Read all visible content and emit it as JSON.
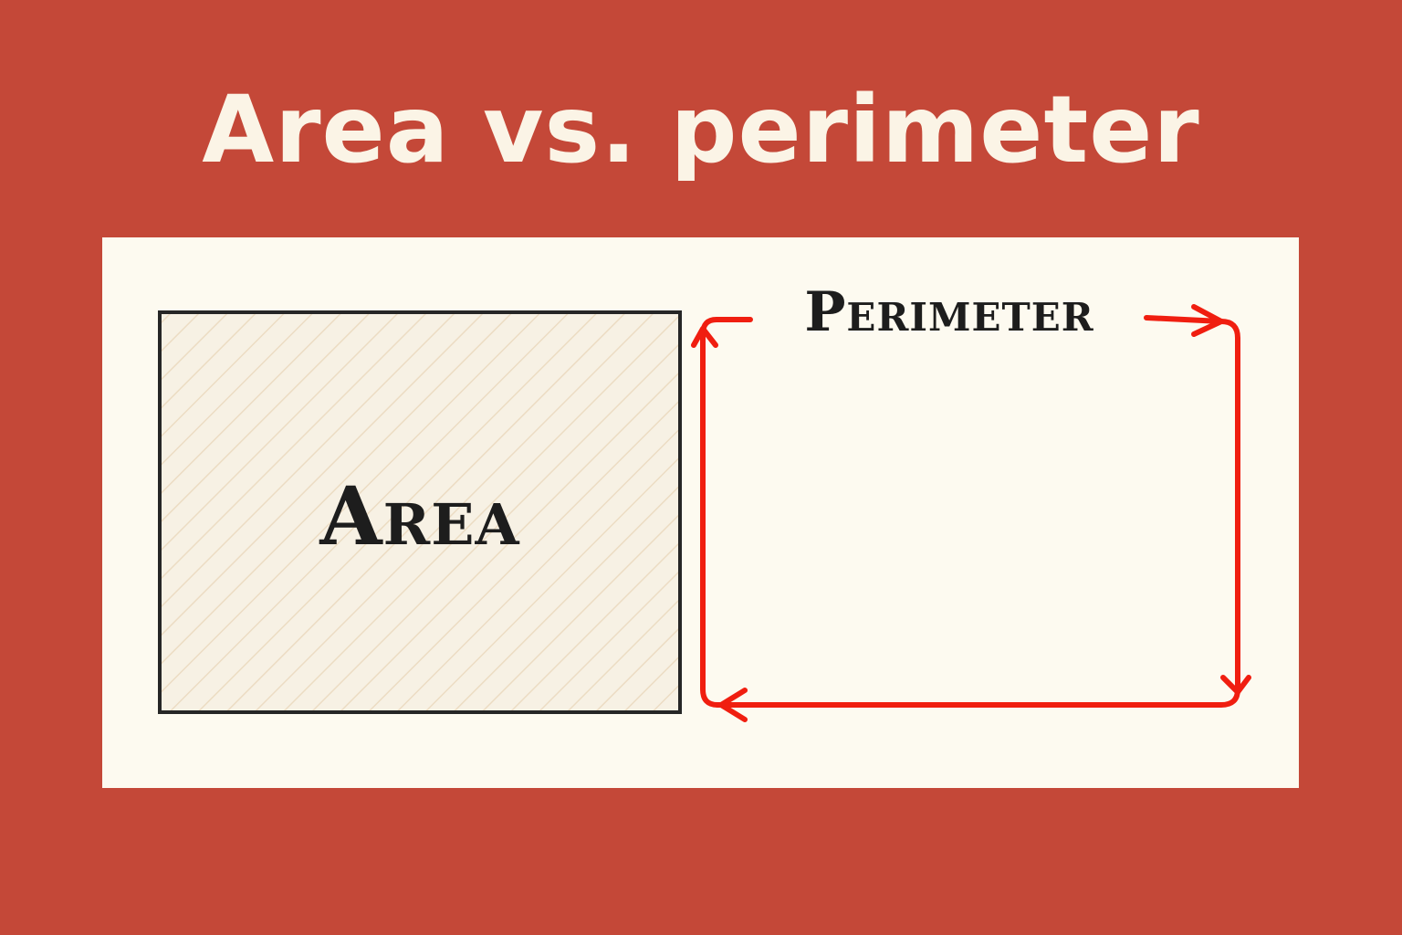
{
  "title": "Area vs. perimeter",
  "area_shape": {
    "label": "Area"
  },
  "perimeter_shape": {
    "label": "Perimeter"
  },
  "colors": {
    "background": "#c44838",
    "panel": "#fdfaf0",
    "title_text": "#fbf4e6",
    "label_text": "#1d1d1d",
    "perimeter_stroke": "#f01e10",
    "area_hatch": "#ecdcc3",
    "area_fill": "#f7f1e4"
  }
}
